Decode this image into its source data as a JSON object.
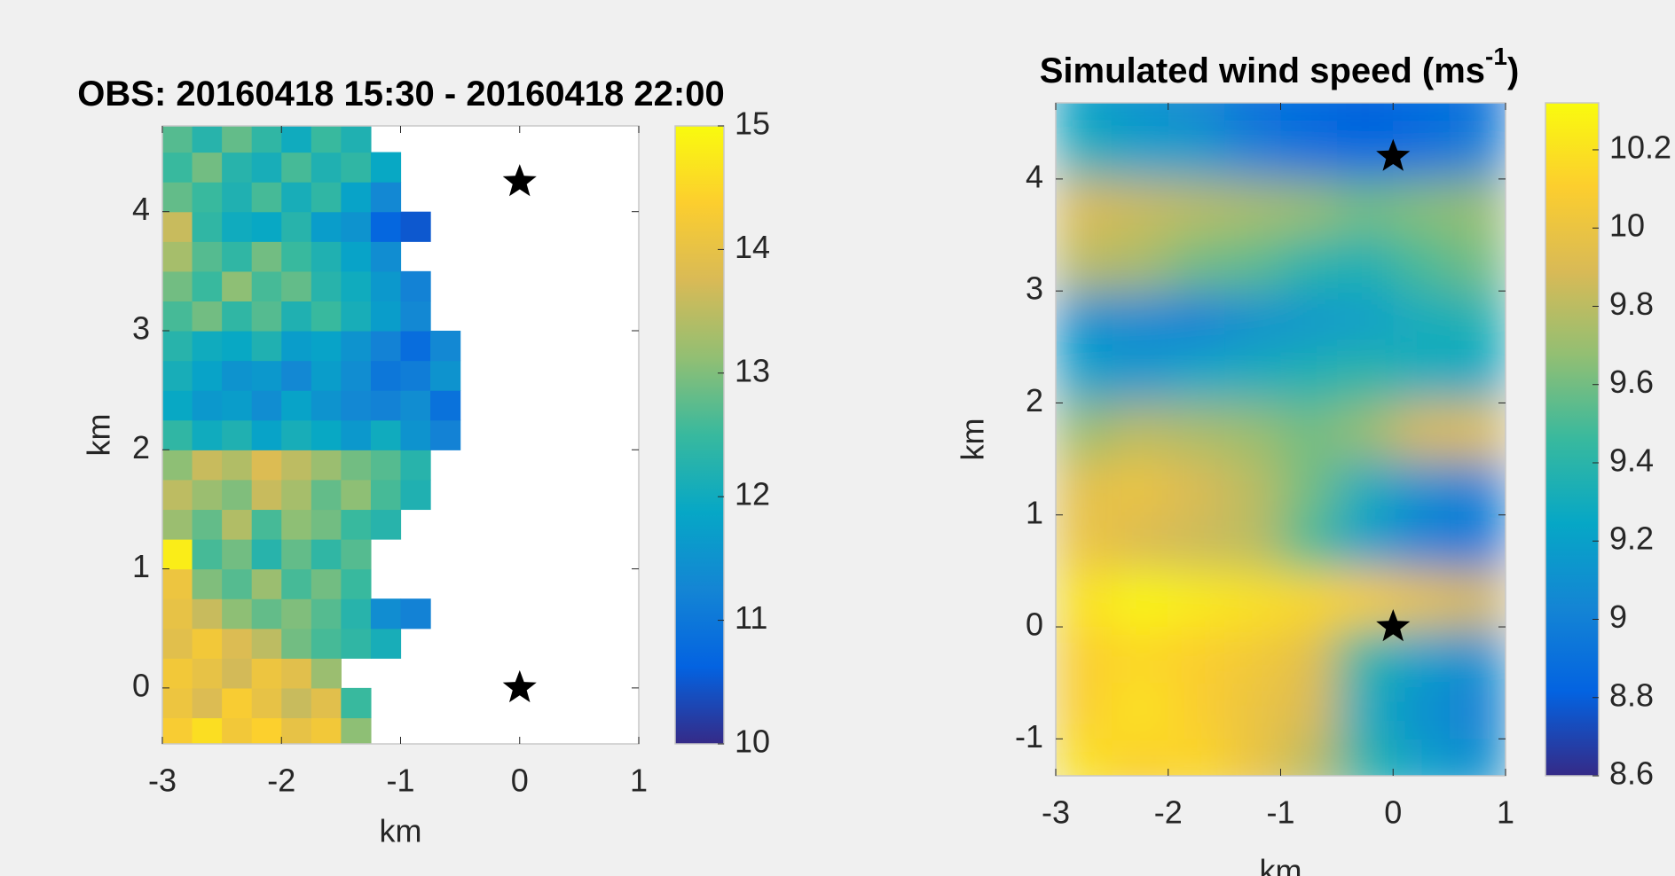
{
  "chart_data": [
    {
      "type": "heatmap",
      "title": [
        "OBS: 20160418 15:30 - 20160418 22:00"
      ],
      "xlabel": "km",
      "ylabel": "km",
      "xlim": [
        -3,
        1
      ],
      "ylim": [
        -0.47,
        4.72
      ],
      "xticks": [
        -3,
        -2,
        -1,
        0,
        1
      ],
      "yticks": [
        0,
        1,
        2,
        3,
        4
      ],
      "colormap": "parula",
      "shading": "flat",
      "clim": [
        10,
        15
      ],
      "colorbar_ticks": [
        10,
        11,
        12,
        13,
        14,
        15
      ],
      "xbins": [
        -3,
        -2.75,
        -2.5,
        -2.25,
        -2,
        -1.75,
        -1.5,
        -1.25,
        -1,
        -0.75,
        -0.5
      ],
      "ybins": [
        -0.5,
        -0.25,
        0,
        0.25,
        0.5,
        0.75,
        1,
        1.25,
        1.5,
        1.75,
        2,
        2.25,
        2.5,
        2.75,
        3,
        3.25,
        3.5,
        3.75,
        4,
        4.25,
        4.5,
        4.75
      ],
      "z": [
        [
          14.3,
          14.6,
          14.2,
          14.4,
          14.0,
          14.2,
          13.1,
          null,
          null,
          null
        ],
        [
          14.1,
          13.8,
          14.3,
          14.0,
          13.6,
          13.9,
          12.5,
          null,
          null,
          null
        ],
        [
          14.2,
          14.0,
          13.7,
          14.1,
          13.9,
          13.2,
          null,
          null,
          null,
          null
        ],
        [
          13.9,
          14.2,
          13.8,
          13.5,
          12.9,
          12.6,
          12.4,
          12.1,
          null,
          null
        ],
        [
          14.0,
          13.6,
          13.1,
          12.8,
          13.0,
          12.7,
          12.3,
          11.4,
          11.2,
          null
        ],
        [
          14.1,
          13.0,
          12.7,
          13.2,
          12.6,
          12.9,
          12.5,
          null,
          null,
          null
        ],
        [
          14.8,
          12.6,
          12.9,
          12.3,
          12.8,
          12.4,
          12.7,
          null,
          null,
          null
        ],
        [
          13.2,
          12.8,
          13.4,
          12.6,
          13.1,
          12.9,
          12.5,
          12.3,
          null,
          null
        ],
        [
          13.5,
          13.2,
          13.0,
          13.6,
          13.3,
          12.8,
          13.1,
          12.6,
          12.2,
          null
        ],
        [
          13.1,
          13.6,
          13.4,
          13.8,
          13.5,
          13.2,
          12.9,
          12.7,
          12.3,
          null
        ],
        [
          12.4,
          12.0,
          12.2,
          11.8,
          12.1,
          11.9,
          11.6,
          12.0,
          11.5,
          11.2
        ],
        [
          11.9,
          11.6,
          11.7,
          11.4,
          11.8,
          11.5,
          11.3,
          11.2,
          11.4,
          10.9
        ],
        [
          12.1,
          11.8,
          11.5,
          11.6,
          11.3,
          11.7,
          11.4,
          11.0,
          11.1,
          11.5
        ],
        [
          12.3,
          12.0,
          11.9,
          12.2,
          11.7,
          11.8,
          11.5,
          11.2,
          10.8,
          11.3
        ],
        [
          12.6,
          12.9,
          12.4,
          12.7,
          12.2,
          12.5,
          12.1,
          11.7,
          11.3,
          null
        ],
        [
          12.9,
          12.5,
          13.1,
          12.6,
          12.8,
          12.3,
          12.0,
          11.6,
          11.2,
          null
        ],
        [
          13.3,
          12.7,
          12.4,
          12.9,
          12.5,
          12.2,
          11.8,
          11.4,
          null,
          null
        ],
        [
          13.6,
          12.4,
          12.0,
          11.9,
          12.3,
          11.7,
          11.5,
          10.7,
          10.5,
          null
        ],
        [
          12.8,
          12.5,
          12.2,
          12.6,
          12.1,
          12.4,
          11.8,
          11.3,
          null,
          null
        ],
        [
          12.5,
          12.9,
          12.3,
          12.1,
          12.6,
          12.2,
          12.4,
          11.9,
          null,
          null
        ],
        [
          12.7,
          12.3,
          12.8,
          12.4,
          12.0,
          12.5,
          12.2,
          null,
          null,
          null
        ]
      ],
      "markers": {
        "x": [
          0,
          0
        ],
        "y": [
          0,
          4.25
        ]
      }
    },
    {
      "type": "heatmap",
      "title": [
        "Simulated wind speed (ms",
        "-1",
        ")"
      ],
      "xlabel": "km",
      "ylabel": "km",
      "xlim": [
        -3,
        1
      ],
      "ylim": [
        -1.33,
        4.68
      ],
      "xticks": [
        -3,
        -2,
        -1,
        0,
        1
      ],
      "yticks": [
        -1,
        0,
        1,
        2,
        3,
        4
      ],
      "colormap": "parula",
      "shading": "interp",
      "clim": [
        8.6,
        10.32
      ],
      "colorbar_ticks": [
        8.6,
        8.8,
        9,
        9.2,
        9.4,
        9.6,
        9.8,
        10,
        10.2
      ],
      "xbins": [
        -3,
        -2.5,
        -2,
        -1.5,
        -1,
        -0.5,
        0,
        0.5,
        1
      ],
      "ybins": [
        -1.5,
        -1,
        -0.5,
        0,
        0.5,
        1,
        1.5,
        2,
        2.5,
        3,
        3.5,
        4,
        4.5,
        5
      ],
      "z": [
        [
          10.2,
          10.1,
          10.15,
          10.0,
          9.8,
          9.4,
          9.2,
          9.1
        ],
        [
          10.1,
          10.2,
          10.1,
          10.0,
          9.9,
          9.3,
          9.1,
          9.0
        ],
        [
          10.1,
          10.15,
          10.1,
          10.05,
          9.95,
          9.4,
          9.2,
          9.1
        ],
        [
          10.2,
          10.3,
          10.25,
          10.2,
          10.15,
          10.1,
          10.0,
          9.9
        ],
        [
          10.0,
          9.9,
          9.85,
          9.8,
          9.5,
          9.2,
          9.0,
          8.95
        ],
        [
          9.95,
          10.0,
          9.9,
          9.8,
          9.6,
          9.3,
          9.1,
          9.0
        ],
        [
          9.7,
          9.8,
          9.75,
          9.7,
          9.6,
          9.7,
          9.9,
          9.95
        ],
        [
          9.2,
          9.15,
          9.25,
          9.3,
          9.35,
          9.4,
          9.3,
          9.25
        ],
        [
          9.1,
          9.05,
          9.0,
          9.1,
          9.15,
          9.2,
          9.3,
          9.35
        ],
        [
          9.8,
          9.75,
          9.6,
          9.55,
          9.4,
          9.35,
          9.5,
          9.6
        ],
        [
          9.9,
          9.85,
          9.8,
          9.75,
          9.7,
          9.6,
          9.65,
          9.7
        ],
        [
          9.3,
          9.2,
          9.15,
          9.0,
          8.9,
          8.85,
          8.9,
          9.0
        ],
        [
          9.2,
          9.1,
          9.05,
          8.9,
          8.85,
          8.8,
          8.85,
          8.9
        ]
      ],
      "markers": {
        "x": [
          0,
          0
        ],
        "y": [
          0,
          4.2
        ]
      }
    }
  ]
}
